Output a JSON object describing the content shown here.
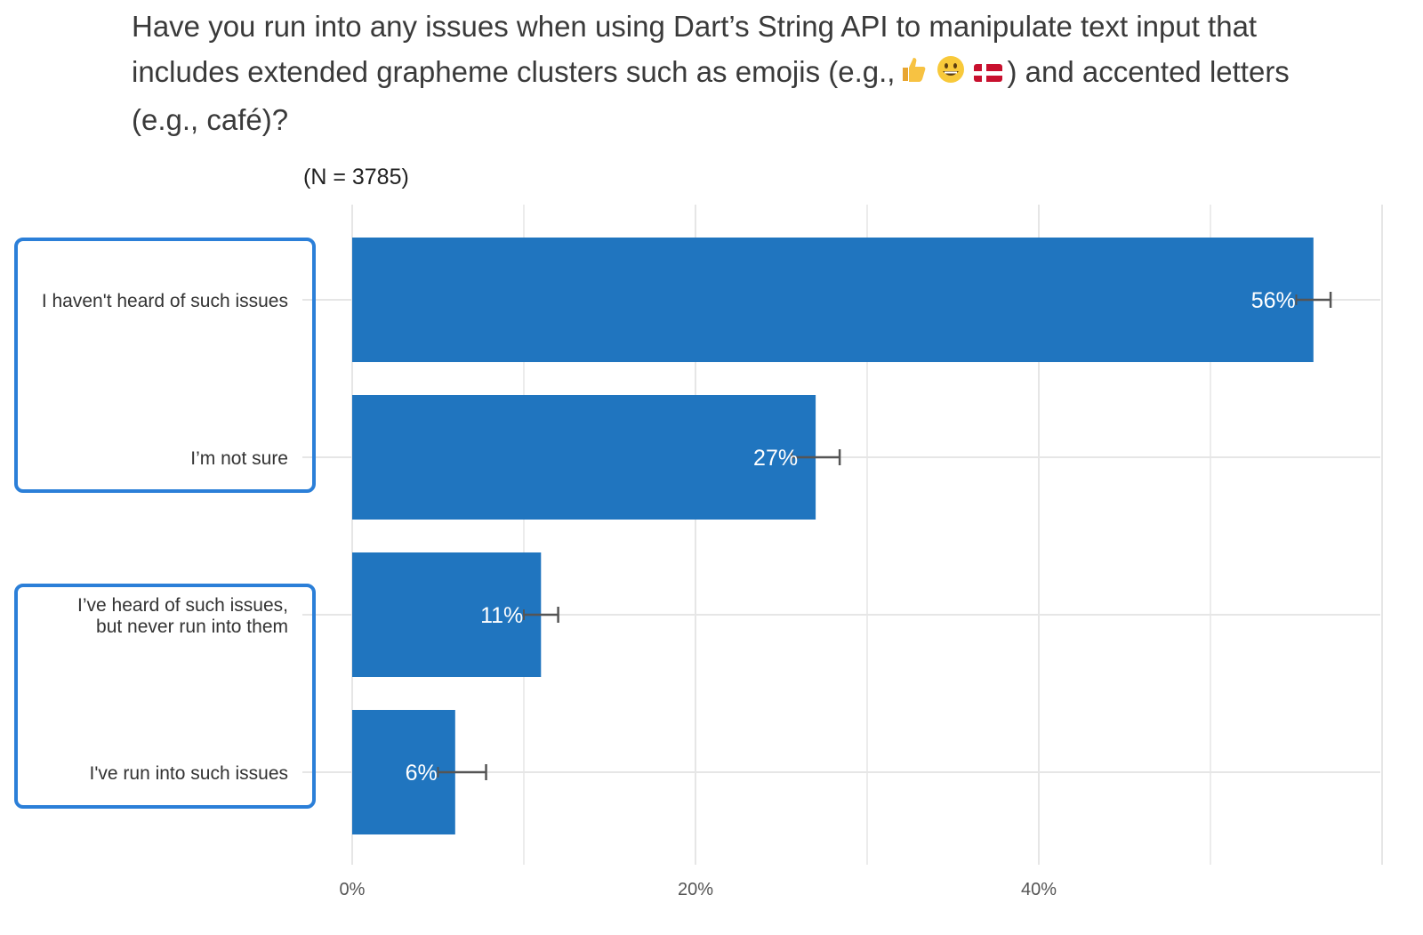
{
  "question": {
    "prefix": "Have you run into any issues when using Dart’s String API to manipulate text input that includes extended grapheme clusters such as emojis (e.g.,",
    "emojis": [
      "thumbs-up-icon",
      "grinning-face-icon",
      "denmark-flag-icon"
    ],
    "suffix": ") and accented letters (e.g., café)?"
  },
  "chart_data": {
    "type": "bar",
    "orientation": "horizontal",
    "sample_size_label": "(N = 3785)",
    "categories": [
      "I haven't heard of such issues",
      "I’m not sure",
      "I’ve heard of such issues,\nbut never run into them",
      "I've run into such issues"
    ],
    "values": [
      56,
      27,
      11,
      6
    ],
    "value_labels": [
      "56%",
      "27%",
      "11%",
      "6%"
    ],
    "error_high": [
      57.0,
      28.4,
      12.0,
      7.8
    ],
    "error_low": [
      55.0,
      25.6,
      10.0,
      5.0
    ],
    "xlim": [
      0,
      60
    ],
    "xticks": [
      0,
      20,
      40
    ],
    "xtick_labels": [
      "0%",
      "20%",
      "40%"
    ],
    "grid": true,
    "bar_color": "#2075bf",
    "highlight_color": "#2b7fd8",
    "highlight_groups": [
      [
        0,
        1
      ],
      [
        2,
        3
      ]
    ]
  }
}
